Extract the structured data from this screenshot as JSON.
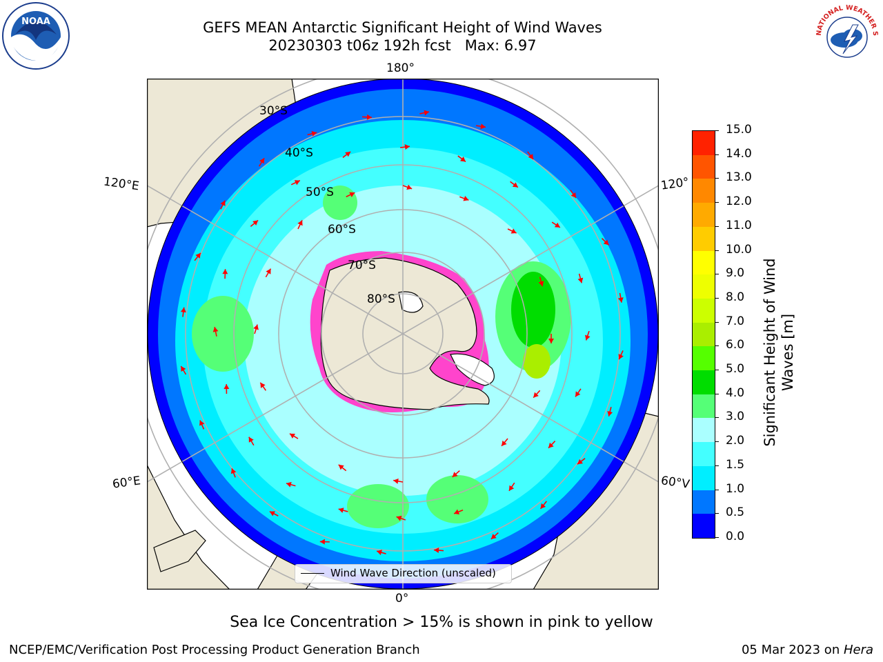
{
  "title": {
    "line1": "GEFS MEAN Antarctic Significant Height of Wind Waves",
    "line2": "20230303 t06z 192h fcst   Max: 6.97"
  },
  "map": {
    "projection": "south-polar-stereographic",
    "longitude_labels": {
      "top": "180°",
      "bottom": "0°",
      "upper_left": "120°E",
      "lower_left": "60°E",
      "upper_right": "120°",
      "lower_right": "60°V"
    },
    "latitude_labels": [
      "30°S",
      "40°S",
      "50°S",
      "60°S",
      "70°S",
      "80°S"
    ],
    "colors": {
      "land": "#ede8d6",
      "grid": "#b0b0b0",
      "arrow": "#ff0000",
      "sea_ice": "#ff44cc"
    }
  },
  "legend": {
    "label": "Wind Wave Direction (unscaled)"
  },
  "colorbar": {
    "label": "Significant Height of Wind Waves [m]",
    "ticks": [
      "0.0",
      "0.5",
      "1.0",
      "1.5",
      "2.0",
      "3.0",
      "4.0",
      "5.0",
      "6.0",
      "7.0",
      "8.0",
      "9.0",
      "10.0",
      "11.0",
      "12.0",
      "13.0",
      "14.0",
      "15.0"
    ],
    "colors": [
      "#0000ff",
      "#0077ff",
      "#00eeff",
      "#44ffff",
      "#aaffff",
      "#55ff77",
      "#00dd00",
      "#55ff00",
      "#aaee00",
      "#ccff00",
      "#eeff00",
      "#ffff00",
      "#ffcc00",
      "#ffaa00",
      "#ff8800",
      "#ff5500",
      "#ff2200"
    ]
  },
  "note": "Sea Ice Concentration > 15% is shown in pink to yellow",
  "footer": {
    "left": "NCEP/EMC/Verification Post Processing Product Generation Branch",
    "right_prefix": "05 Mar 2023 on ",
    "right_host": "Hera"
  },
  "logos": {
    "left": "NOAA",
    "right": "NATIONAL WEATHER SERVICE"
  }
}
